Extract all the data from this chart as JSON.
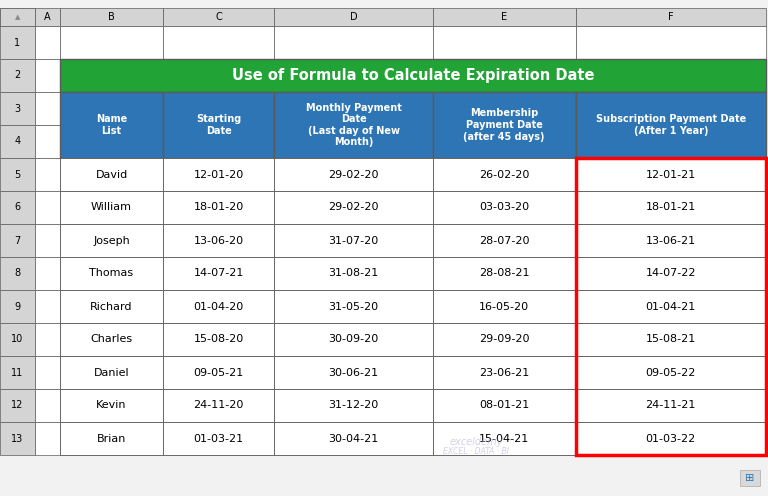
{
  "title": "Use of Formula to Calculate Expiration Date",
  "title_bg": "#21A336",
  "title_color": "#FFFFFF",
  "header_bg": "#2E75B6",
  "header_color": "#FFFFFF",
  "row_bg": "#FFFFFF",
  "row_text_color": "#000000",
  "border_color": "#5A5A5A",
  "highlight_border_color": "#FF0000",
  "col_headers": [
    "Name\nList",
    "Starting\nDate",
    "Monthly Payment\nDate\n(Last day of New\nMonth)",
    "Membership\nPayment Date\n(after 45 days)",
    "Subscription Payment Date\n(After 1 Year)"
  ],
  "rows": [
    [
      "David",
      "12-01-20",
      "29-02-20",
      "26-02-20",
      "12-01-21"
    ],
    [
      "William",
      "18-01-20",
      "29-02-20",
      "03-03-20",
      "18-01-21"
    ],
    [
      "Joseph",
      "13-06-20",
      "31-07-20",
      "28-07-20",
      "13-06-21"
    ],
    [
      "Thomas",
      "14-07-21",
      "31-08-21",
      "28-08-21",
      "14-07-22"
    ],
    [
      "Richard",
      "01-04-20",
      "31-05-20",
      "16-05-20",
      "01-04-21"
    ],
    [
      "Charles",
      "15-08-20",
      "30-09-20",
      "29-09-20",
      "15-08-21"
    ],
    [
      "Daniel",
      "09-05-21",
      "30-06-21",
      "23-06-21",
      "09-05-22"
    ],
    [
      "Kevin",
      "24-11-20",
      "31-12-20",
      "08-01-21",
      "24-11-21"
    ],
    [
      "Brian",
      "01-03-21",
      "30-04-21",
      "15-04-21",
      "01-03-22"
    ]
  ],
  "excel_col_labels": [
    "A",
    "B",
    "C",
    "D",
    "E",
    "F"
  ],
  "excel_row_labels": [
    "1",
    "2",
    "3",
    "4",
    "5",
    "6",
    "7",
    "8",
    "9",
    "10",
    "11",
    "12",
    "13"
  ],
  "excel_header_bg": "#D4D4D4",
  "excel_bg": "#F2F2F2",
  "watermark_line1": "exceldemy",
  "watermark_line2": "EXCEL · DATA · BI"
}
